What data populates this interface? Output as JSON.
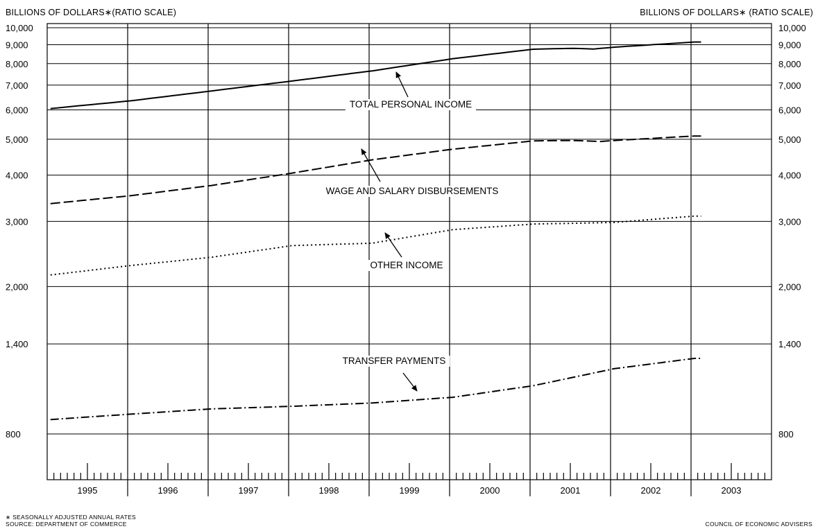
{
  "figure": {
    "left_axis_title": "BILLIONS OF DOLLARS∗(RATIO SCALE)",
    "right_axis_title": "BILLIONS OF DOLLARS∗ (RATIO SCALE)",
    "footnote_line1": "∗ SEASONALLY ADJUSTED ANNUAL RATES",
    "footnote_line2": "SOURCE: DEPARTMENT OF COMMERCE",
    "credit": "COUNCIL OF ECONOMIC ADVISERS"
  },
  "chart_data": {
    "type": "line",
    "title": "",
    "xlabel": "",
    "ylabel": "BILLIONS OF DOLLARS∗(RATIO SCALE)",
    "y_scale": "log",
    "ylim": [
      700,
      10000
    ],
    "y_ticks": [
      800,
      1400,
      2000,
      3000,
      4000,
      5000,
      6000,
      7000,
      8000,
      9000,
      10000
    ],
    "y_tick_labels": [
      "800",
      "1,400",
      "2,000",
      "3,000",
      "4,000",
      "5,000",
      "6,000",
      "7,000",
      "8,000",
      "9,000",
      "10,000"
    ],
    "x_range": [
      "1995-01",
      "2003-12"
    ],
    "x_tick_labels": [
      "1995",
      "1996",
      "1997",
      "1998",
      "1999",
      "2000",
      "2001",
      "2002",
      "2003"
    ],
    "grid": true,
    "frequency": "monthly",
    "series": [
      {
        "name": "TOTAL PERSONAL INCOME",
        "style": "solid",
        "start": "1995-01",
        "end": "2003-02",
        "points": [
          [
            "1995-01",
            6050
          ],
          [
            "1996-01",
            6350
          ],
          [
            "1997-01",
            6750
          ],
          [
            "1998-01",
            7180
          ],
          [
            "1999-01",
            7650
          ],
          [
            "2000-01",
            8250
          ],
          [
            "2001-01",
            8750
          ],
          [
            "2001-07",
            8800
          ],
          [
            "2001-10",
            8760
          ],
          [
            "2002-01",
            8860
          ],
          [
            "2003-01",
            9150
          ]
        ]
      },
      {
        "name": "WAGE AND SALARY DISBURSEMENTS",
        "style": "dashed",
        "start": "1995-01",
        "end": "2003-02",
        "points": [
          [
            "1995-01",
            3350
          ],
          [
            "1996-01",
            3520
          ],
          [
            "1997-01",
            3750
          ],
          [
            "1998-01",
            4050
          ],
          [
            "1999-01",
            4400
          ],
          [
            "2000-01",
            4700
          ],
          [
            "2001-01",
            4950
          ],
          [
            "2001-07",
            4960
          ],
          [
            "2001-11",
            4930
          ],
          [
            "2002-01",
            4960
          ],
          [
            "2003-01",
            5100
          ]
        ]
      },
      {
        "name": "OTHER INCOME",
        "style": "dotted",
        "start": "1995-01",
        "end": "2003-02",
        "points": [
          [
            "1995-01",
            2150
          ],
          [
            "1996-01",
            2280
          ],
          [
            "1997-01",
            2400
          ],
          [
            "1998-01",
            2580
          ],
          [
            "1999-01",
            2620
          ],
          [
            "2000-01",
            2850
          ],
          [
            "2001-01",
            2950
          ],
          [
            "2002-01",
            2980
          ],
          [
            "2003-01",
            3100
          ]
        ]
      },
      {
        "name": "TRANSFER PAYMENTS",
        "style": "dash-dot",
        "start": "1995-01",
        "end": "2003-02",
        "points": [
          [
            "1995-01",
            875
          ],
          [
            "1996-01",
            905
          ],
          [
            "1997-01",
            935
          ],
          [
            "1998-01",
            950
          ],
          [
            "1999-01",
            970
          ],
          [
            "2000-01",
            1005
          ],
          [
            "2001-01",
            1080
          ],
          [
            "2002-01",
            1200
          ],
          [
            "2003-01",
            1280
          ]
        ]
      }
    ],
    "annotations": [
      {
        "text": "TOTAL PERSONAL INCOME",
        "points_to": "TOTAL PERSONAL INCOME"
      },
      {
        "text": "WAGE AND SALARY DISBURSEMENTS",
        "points_to": "WAGE AND SALARY DISBURSEMENTS"
      },
      {
        "text": "OTHER INCOME",
        "points_to": "OTHER INCOME"
      },
      {
        "text": "TRANSFER PAYMENTS",
        "points_to": "TRANSFER PAYMENTS"
      }
    ]
  }
}
